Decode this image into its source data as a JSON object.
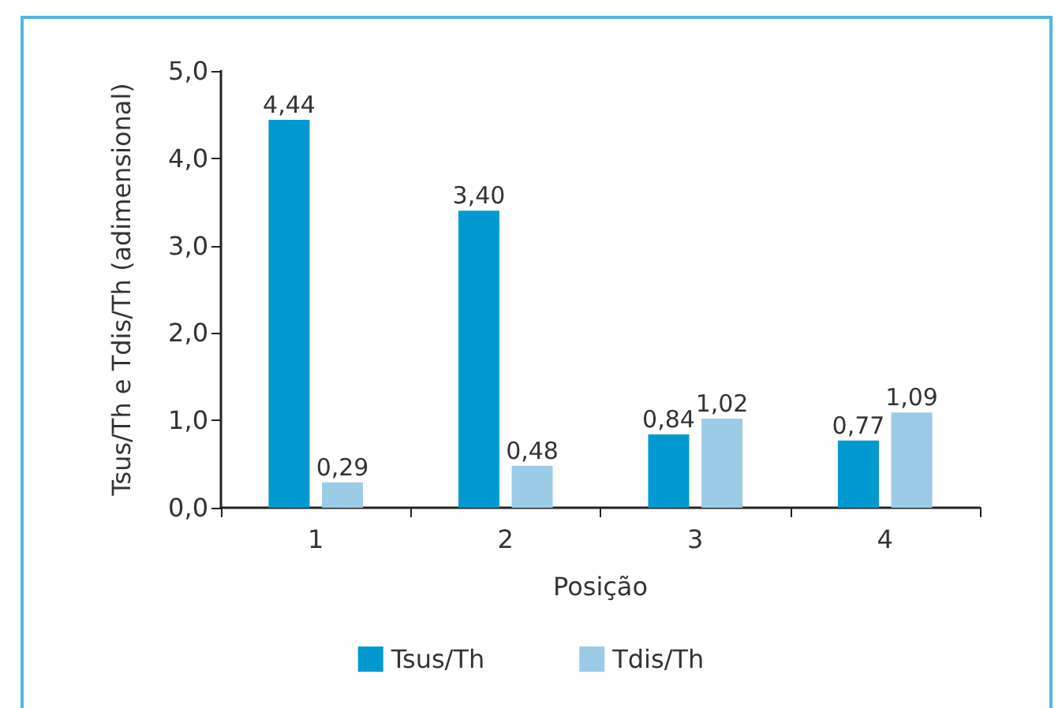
{
  "chart_data": {
    "type": "bar",
    "xlabel": "Posição",
    "ylabel": "Tsus/Th e Tdis/Th (adimensional)",
    "categories": [
      "1",
      "2",
      "3",
      "4"
    ],
    "series": [
      {
        "name": "Tsus/Th",
        "color": "#009ad0",
        "values": [
          4.44,
          3.4,
          0.84,
          0.77
        ],
        "value_labels": [
          "4,44",
          "3,40",
          "0,84",
          "0,77"
        ]
      },
      {
        "name": "Tdis/Th",
        "color": "#9ccbe8",
        "values": [
          0.29,
          0.48,
          1.02,
          1.09
        ],
        "value_labels": [
          "0,29",
          "0,48",
          "1,02",
          "1,09"
        ]
      }
    ],
    "ylim": [
      0,
      5
    ],
    "yticks": [
      {
        "value": 0,
        "label": "0,0"
      },
      {
        "value": 1,
        "label": "1,0"
      },
      {
        "value": 2,
        "label": "2,0"
      },
      {
        "value": 3,
        "label": "3,0"
      },
      {
        "value": 4,
        "label": "4,0"
      },
      {
        "value": 5,
        "label": "5,0"
      }
    ],
    "grid": false,
    "legend": "bottom"
  }
}
